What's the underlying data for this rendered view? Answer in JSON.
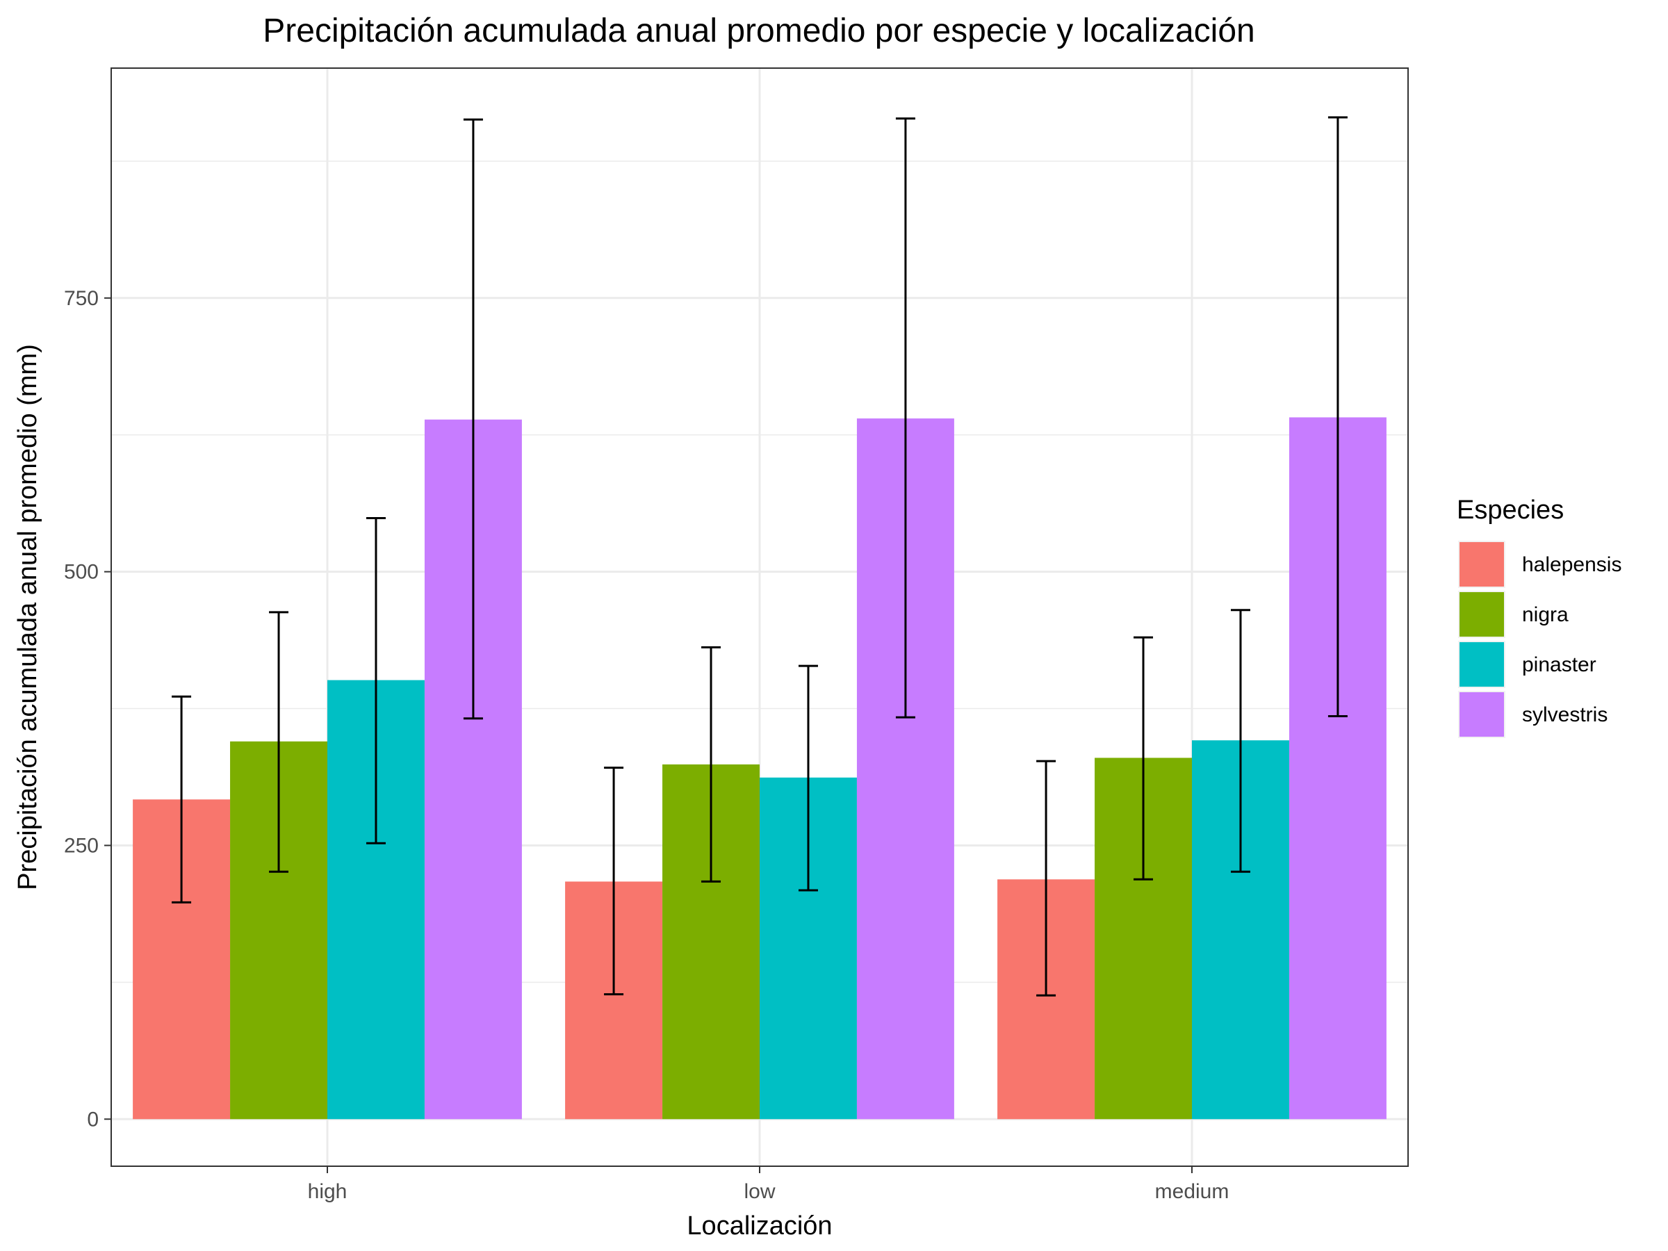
{
  "chart_data": {
    "type": "bar",
    "title": "Precipitación acumulada anual promedio por especie y localización",
    "xlabel": "Localización",
    "ylabel": "Precipitación acumulada anual promedio (mm)",
    "categories": [
      "high",
      "low",
      "medium"
    ],
    "ylim": [
      -43,
      960
    ],
    "yticks": [
      0,
      250,
      500,
      750
    ],
    "grid": true,
    "legend": {
      "title": "Especies",
      "position": "right"
    },
    "series": [
      {
        "name": "halepensis",
        "color": "#F8766D",
        "values": [
          292,
          217,
          219
        ],
        "error_low": [
          198,
          114,
          113
        ],
        "error_high": [
          386,
          321,
          327
        ]
      },
      {
        "name": "nigra",
        "color": "#7CAE00",
        "values": [
          345,
          324,
          330
        ],
        "error_low": [
          226,
          217,
          219
        ],
        "error_high": [
          463,
          431,
          440
        ]
      },
      {
        "name": "pinaster",
        "color": "#00BFC4",
        "values": [
          401,
          312,
          346
        ],
        "error_low": [
          252,
          209,
          226
        ],
        "error_high": [
          549,
          414,
          465
        ]
      },
      {
        "name": "sylvestris",
        "color": "#C77CFF",
        "values": [
          639,
          640,
          641
        ],
        "error_low": [
          366,
          367,
          368
        ],
        "error_high": [
          913,
          914,
          915
        ]
      }
    ]
  }
}
